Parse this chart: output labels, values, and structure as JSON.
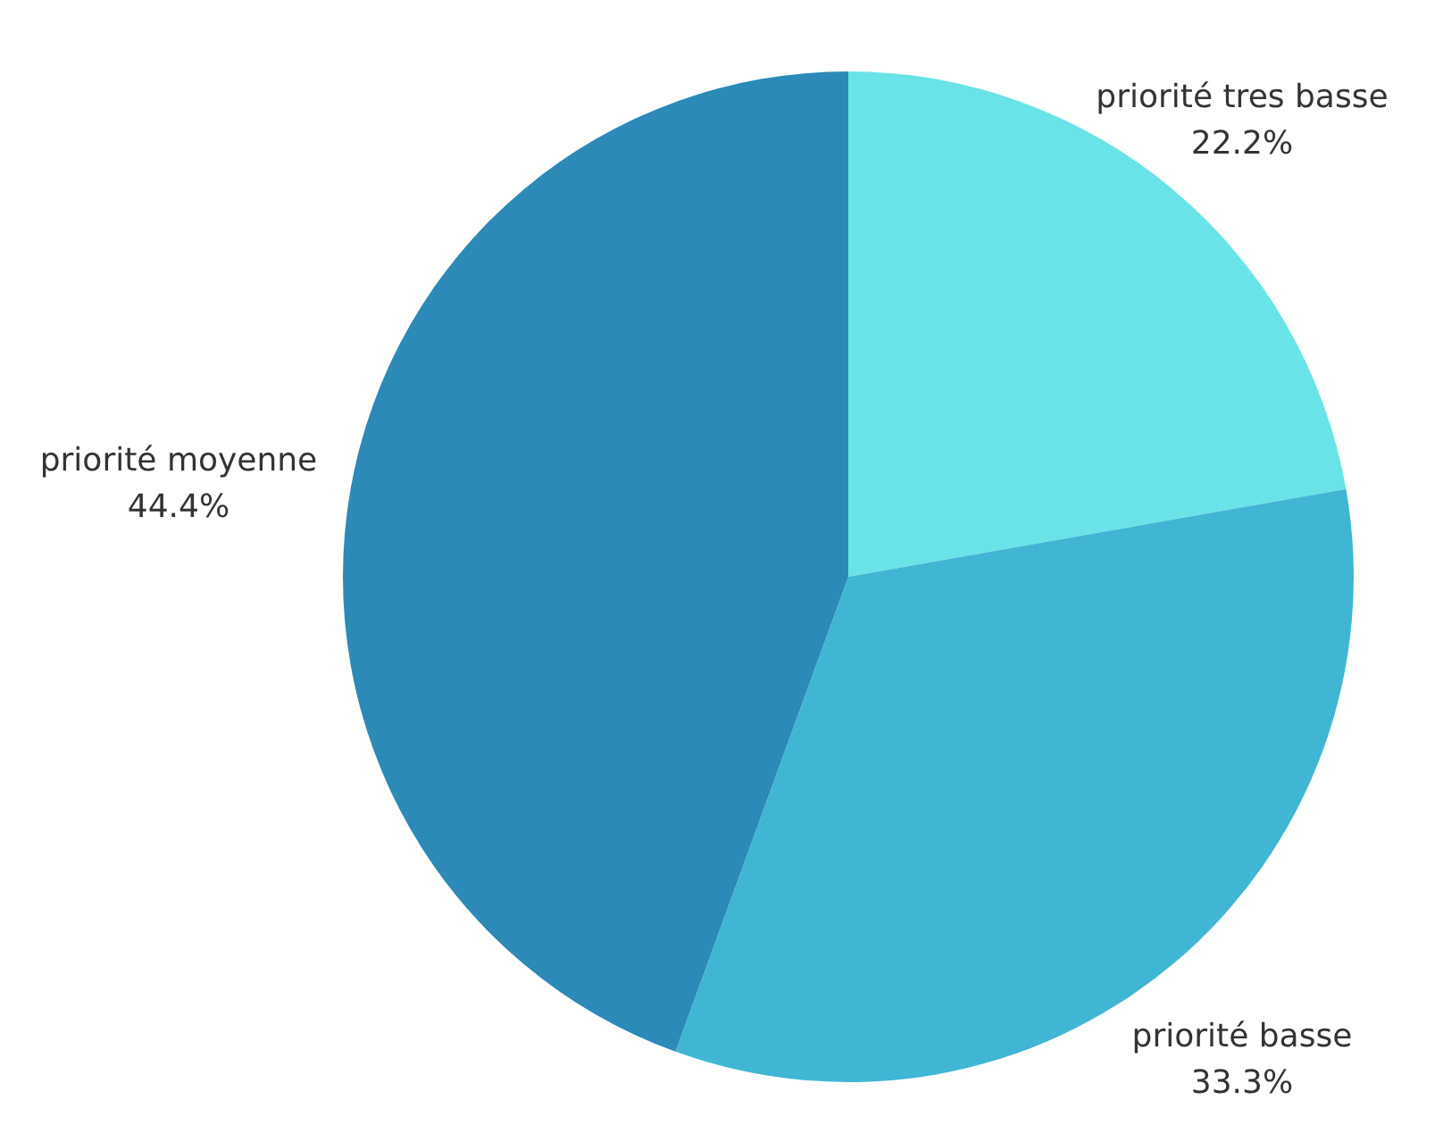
{
  "chart_data": {
    "type": "pie",
    "categories": [
      "priorité tres basse",
      "priorité basse",
      "priorité moyenne"
    ],
    "values": [
      22.2,
      33.3,
      44.4
    ],
    "colors": [
      "#6ae3e8",
      "#41b6d4",
      "#2c8ab8"
    ],
    "value_labels": [
      "22.2%",
      "33.3%",
      "44.4%"
    ]
  }
}
